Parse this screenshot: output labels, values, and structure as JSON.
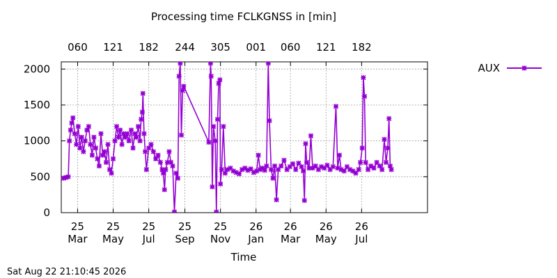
{
  "chart_data": {
    "type": "line",
    "title": "Processing time FCLKGNSS in [min]",
    "xlabel": "Time",
    "ylabel": "",
    "ylim": [
      0,
      2100
    ],
    "yticks": [
      0,
      500,
      1000,
      1500,
      2000
    ],
    "xlim": [
      "2025-02-01",
      "2026-10-22"
    ],
    "grid": true,
    "legend_position": "right",
    "x_ticks_bottom": [
      {
        "date": "2025-03-01",
        "label": [
          "25",
          "Mar"
        ]
      },
      {
        "date": "2025-05-01",
        "label": [
          "25",
          "May"
        ]
      },
      {
        "date": "2025-07-01",
        "label": [
          "25",
          "Jul"
        ]
      },
      {
        "date": "2025-09-01",
        "label": [
          "25",
          "Sep"
        ]
      },
      {
        "date": "2025-11-01",
        "label": [
          "25",
          "Nov"
        ]
      },
      {
        "date": "2026-01-01",
        "label": [
          "26",
          "Jan"
        ]
      },
      {
        "date": "2026-03-01",
        "label": [
          "26",
          "Mar"
        ]
      },
      {
        "date": "2026-05-01",
        "label": [
          "26",
          "May"
        ]
      },
      {
        "date": "2026-07-01",
        "label": [
          "26",
          "Jul"
        ]
      }
    ],
    "x_ticks_top": [
      {
        "date": "2025-03-01",
        "label": "060"
      },
      {
        "date": "2025-05-01",
        "label": "121"
      },
      {
        "date": "2025-07-01",
        "label": "182"
      },
      {
        "date": "2025-09-01",
        "label": "244"
      },
      {
        "date": "2025-11-01",
        "label": "305"
      },
      {
        "date": "2026-01-01",
        "label": "001"
      },
      {
        "date": "2026-03-01",
        "label": "060"
      },
      {
        "date": "2026-05-01",
        "label": "121"
      },
      {
        "date": "2026-07-01",
        "label": "182"
      }
    ],
    "series": [
      {
        "name": "AUX",
        "color": "#9400d3",
        "points": [
          [
            "2025-02-05",
            480
          ],
          [
            "2025-02-09",
            490
          ],
          [
            "2025-02-13",
            500
          ],
          [
            "2025-02-15",
            1000
          ],
          [
            "2025-02-17",
            1150
          ],
          [
            "2025-02-19",
            1250
          ],
          [
            "2025-02-21",
            1320
          ],
          [
            "2025-02-24",
            1100
          ],
          [
            "2025-02-27",
            950
          ],
          [
            "2025-03-02",
            1200
          ],
          [
            "2025-03-05",
            900
          ],
          [
            "2025-03-08",
            1050
          ],
          [
            "2025-03-11",
            850
          ],
          [
            "2025-03-14",
            1000
          ],
          [
            "2025-03-17",
            1150
          ],
          [
            "2025-03-20",
            1200
          ],
          [
            "2025-03-23",
            950
          ],
          [
            "2025-03-26",
            800
          ],
          [
            "2025-03-29",
            1050
          ],
          [
            "2025-04-01",
            900
          ],
          [
            "2025-04-04",
            750
          ],
          [
            "2025-04-07",
            650
          ],
          [
            "2025-04-10",
            1100
          ],
          [
            "2025-04-13",
            800
          ],
          [
            "2025-04-16",
            850
          ],
          [
            "2025-04-19",
            700
          ],
          [
            "2025-04-22",
            950
          ],
          [
            "2025-04-25",
            600
          ],
          [
            "2025-04-28",
            550
          ],
          [
            "2025-05-01",
            750
          ],
          [
            "2025-05-04",
            1000
          ],
          [
            "2025-05-07",
            1200
          ],
          [
            "2025-05-10",
            1050
          ],
          [
            "2025-05-13",
            1150
          ],
          [
            "2025-05-16",
            950
          ],
          [
            "2025-05-19",
            1100
          ],
          [
            "2025-05-22",
            1050
          ],
          [
            "2025-05-25",
            1100
          ],
          [
            "2025-05-28",
            1000
          ],
          [
            "2025-06-01",
            1150
          ],
          [
            "2025-06-04",
            900
          ],
          [
            "2025-06-07",
            1100
          ],
          [
            "2025-06-10",
            1050
          ],
          [
            "2025-06-13",
            1200
          ],
          [
            "2025-06-16",
            1000
          ],
          [
            "2025-06-18",
            1300
          ],
          [
            "2025-06-20",
            1400
          ],
          [
            "2025-06-21",
            1660
          ],
          [
            "2025-06-23",
            1100
          ],
          [
            "2025-06-25",
            850
          ],
          [
            "2025-06-27",
            600
          ],
          [
            "2025-07-01",
            900
          ],
          [
            "2025-07-05",
            950
          ],
          [
            "2025-07-09",
            850
          ],
          [
            "2025-07-13",
            750
          ],
          [
            "2025-07-17",
            800
          ],
          [
            "2025-07-21",
            700
          ],
          [
            "2025-07-24",
            600
          ],
          [
            "2025-07-26",
            550
          ],
          [
            "2025-07-28",
            320
          ],
          [
            "2025-07-30",
            600
          ],
          [
            "2025-08-02",
            700
          ],
          [
            "2025-08-05",
            850
          ],
          [
            "2025-08-08",
            700
          ],
          [
            "2025-08-11",
            650
          ],
          [
            "2025-08-14",
            10
          ],
          [
            "2025-08-17",
            550
          ],
          [
            "2025-08-20",
            480
          ],
          [
            "2025-08-22",
            1900
          ],
          [
            "2025-08-24",
            2080
          ],
          [
            "2025-08-26",
            1080
          ],
          [
            "2025-08-28",
            1700
          ],
          [
            "2025-08-30",
            1760
          ],
          [
            "2025-10-12",
            980
          ],
          [
            "2025-10-15",
            2080
          ],
          [
            "2025-10-16",
            1900
          ],
          [
            "2025-10-18",
            360
          ],
          [
            "2025-10-20",
            1200
          ],
          [
            "2025-10-23",
            1000
          ],
          [
            "2025-10-25",
            10
          ],
          [
            "2025-10-27",
            1300
          ],
          [
            "2025-10-29",
            1800
          ],
          [
            "2025-10-31",
            1850
          ],
          [
            "2025-11-01",
            400
          ],
          [
            "2025-11-03",
            600
          ],
          [
            "2025-11-06",
            1200
          ],
          [
            "2025-11-09",
            550
          ],
          [
            "2025-11-13",
            600
          ],
          [
            "2025-11-18",
            620
          ],
          [
            "2025-11-23",
            580
          ],
          [
            "2025-11-28",
            560
          ],
          [
            "2025-12-03",
            540
          ],
          [
            "2025-12-08",
            600
          ],
          [
            "2025-12-13",
            620
          ],
          [
            "2025-12-18",
            590
          ],
          [
            "2025-12-23",
            610
          ],
          [
            "2025-12-28",
            560
          ],
          [
            "2026-01-02",
            580
          ],
          [
            "2026-01-05",
            800
          ],
          [
            "2026-01-08",
            600
          ],
          [
            "2026-01-12",
            620
          ],
          [
            "2026-01-16",
            590
          ],
          [
            "2026-01-19",
            650
          ],
          [
            "2026-01-22",
            2080
          ],
          [
            "2026-01-24",
            1280
          ],
          [
            "2026-01-27",
            600
          ],
          [
            "2026-01-30",
            480
          ],
          [
            "2026-02-02",
            650
          ],
          [
            "2026-02-05",
            180
          ],
          [
            "2026-02-08",
            600
          ],
          [
            "2026-02-13",
            650
          ],
          [
            "2026-02-18",
            730
          ],
          [
            "2026-02-23",
            600
          ],
          [
            "2026-02-28",
            640
          ],
          [
            "2026-03-05",
            680
          ],
          [
            "2026-03-10",
            600
          ],
          [
            "2026-03-15",
            690
          ],
          [
            "2026-03-20",
            640
          ],
          [
            "2026-03-23",
            580
          ],
          [
            "2026-03-25",
            170
          ],
          [
            "2026-03-27",
            960
          ],
          [
            "2026-03-29",
            700
          ],
          [
            "2026-04-02",
            620
          ],
          [
            "2026-04-05",
            1070
          ],
          [
            "2026-04-08",
            620
          ],
          [
            "2026-04-13",
            650
          ],
          [
            "2026-04-18",
            600
          ],
          [
            "2026-04-23",
            640
          ],
          [
            "2026-04-28",
            620
          ],
          [
            "2026-05-03",
            660
          ],
          [
            "2026-05-08",
            600
          ],
          [
            "2026-05-13",
            640
          ],
          [
            "2026-05-18",
            1480
          ],
          [
            "2026-05-21",
            620
          ],
          [
            "2026-05-24",
            800
          ],
          [
            "2026-05-27",
            600
          ],
          [
            "2026-06-01",
            580
          ],
          [
            "2026-06-06",
            640
          ],
          [
            "2026-06-11",
            600
          ],
          [
            "2026-06-16",
            580
          ],
          [
            "2026-06-21",
            550
          ],
          [
            "2026-06-26",
            600
          ],
          [
            "2026-06-29",
            700
          ],
          [
            "2026-07-02",
            900
          ],
          [
            "2026-07-04",
            1880
          ],
          [
            "2026-07-06",
            1620
          ],
          [
            "2026-07-08",
            700
          ],
          [
            "2026-07-12",
            600
          ],
          [
            "2026-07-17",
            650
          ],
          [
            "2026-07-22",
            620
          ],
          [
            "2026-07-27",
            700
          ],
          [
            "2026-08-01",
            650
          ],
          [
            "2026-08-05",
            600
          ],
          [
            "2026-08-09",
            1020
          ],
          [
            "2026-08-12",
            700
          ],
          [
            "2026-08-15",
            900
          ],
          [
            "2026-08-17",
            1310
          ],
          [
            "2026-08-19",
            650
          ],
          [
            "2026-08-21",
            600
          ]
        ]
      }
    ]
  },
  "footer": {
    "timestamp": "Sat Aug 22 21:10:45 2026"
  }
}
